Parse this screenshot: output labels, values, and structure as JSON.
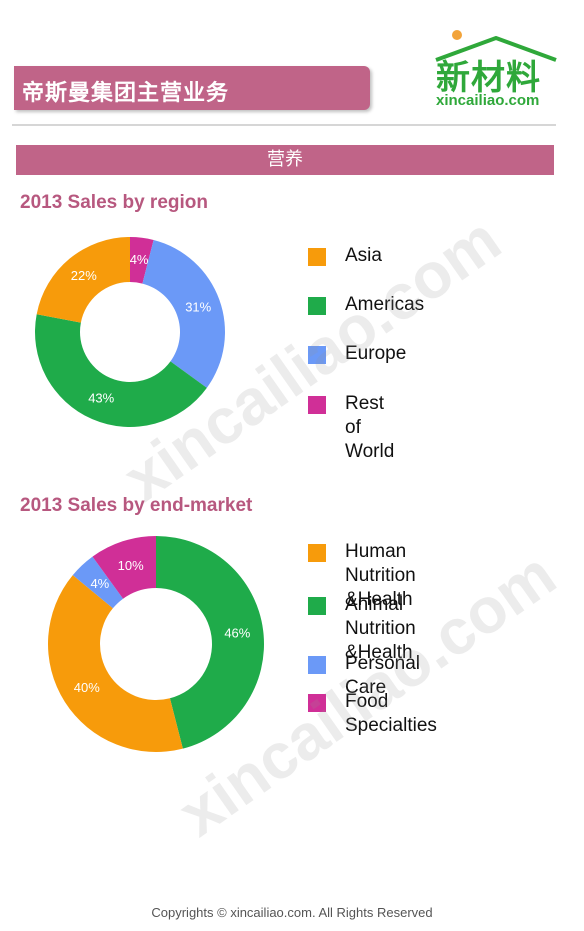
{
  "header": {
    "title": "帝斯曼集团主营业务",
    "logo_main": "新材料",
    "logo_sub": "xincailiao.com"
  },
  "section": {
    "label": "营养"
  },
  "watermark": {
    "text": "xincailiao.com"
  },
  "footer": {
    "text": "Copyrights © xincailiao.com. All Rights Reserved"
  },
  "colors": {
    "brand": "#c06488",
    "title_text": "#b7587f",
    "logo_green": "#2fa83a"
  },
  "chart_data": [
    {
      "type": "pie",
      "title": "2013 Sales by region",
      "categories": [
        "Asia",
        "Americas",
        "Europe",
        "Rest of World"
      ],
      "values": [
        22,
        43,
        31,
        4
      ],
      "labels": [
        "22%",
        "43%",
        "31%",
        "4%"
      ],
      "colors": [
        "#f79b0b",
        "#1fab4a",
        "#6b99f7",
        "#d02f97"
      ],
      "slice_order": [
        "Rest of World",
        "Europe",
        "Americas",
        "Asia"
      ],
      "hole": "donut",
      "legend_position": "right"
    },
    {
      "type": "pie",
      "title": "2013 Sales by end-market",
      "categories": [
        "Human Nutrition\n&Health",
        "Animal Nutrition\n&Health",
        "Personal Care",
        "Food Specialties"
      ],
      "values": [
        40,
        46,
        4,
        10
      ],
      "labels": [
        "40%",
        "46%",
        "4%",
        "10%"
      ],
      "colors": [
        "#f79b0b",
        "#1fab4a",
        "#6b99f7",
        "#d02f97"
      ],
      "slice_order": [
        "Animal Nutrition\n&Health",
        "Human Nutrition\n&Health",
        "Personal Care",
        "Food Specialties"
      ],
      "hole": "donut",
      "legend_position": "right"
    }
  ]
}
